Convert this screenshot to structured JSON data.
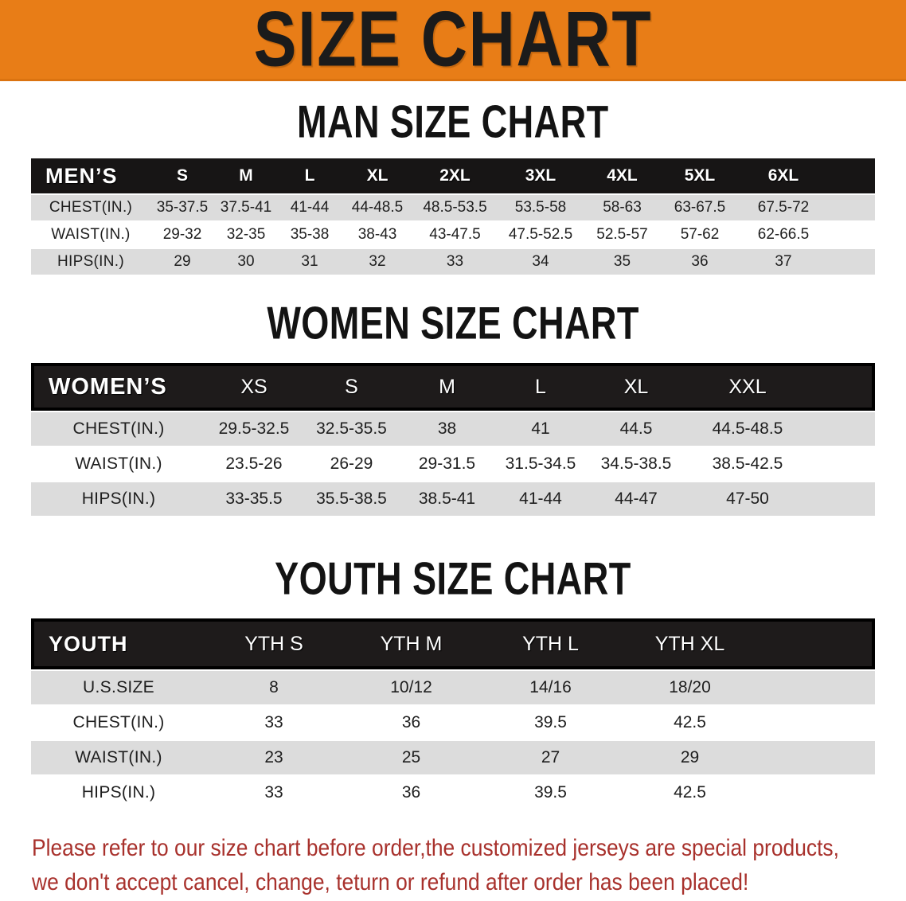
{
  "banner": {
    "title": "SIZE CHART",
    "bg_color": "#e87d17",
    "text_color": "#1b1b1b"
  },
  "sections": {
    "men_heading": "MAN SIZE CHART",
    "women_heading": "WOMEN SIZE CHART",
    "youth_heading": "YOUTH SIZE CHART"
  },
  "tables": {
    "men": {
      "label": "MEN’S",
      "sizes": [
        "S",
        "M",
        "L",
        "XL",
        "2XL",
        "3XL",
        "4XL",
        "5XL",
        "6XL"
      ],
      "rows": [
        {
          "label": "CHEST(IN.)",
          "values": [
            "35-37.5",
            "37.5-41",
            "41-44",
            "44-48.5",
            "48.5-53.5",
            "53.5-58",
            "58-63",
            "63-67.5",
            "67.5-72"
          ]
        },
        {
          "label": "WAIST(IN.)",
          "values": [
            "29-32",
            "32-35",
            "35-38",
            "38-43",
            "43-47.5",
            "47.5-52.5",
            "52.5-57",
            "57-62",
            "62-66.5"
          ]
        },
        {
          "label": "HIPS(IN.)",
          "values": [
            "29",
            "30",
            "31",
            "32",
            "33",
            "34",
            "35",
            "36",
            "37"
          ]
        }
      ]
    },
    "women": {
      "label": "WOMEN’S",
      "sizes": [
        "XS",
        "S",
        "M",
        "L",
        "XL",
        "XXL"
      ],
      "rows": [
        {
          "label": "CHEST(IN.)",
          "values": [
            "29.5-32.5",
            "32.5-35.5",
            "38",
            "41",
            "44.5",
            "44.5-48.5"
          ]
        },
        {
          "label": "WAIST(IN.)",
          "values": [
            "23.5-26",
            "26-29",
            "29-31.5",
            "31.5-34.5",
            "34.5-38.5",
            "38.5-42.5"
          ]
        },
        {
          "label": "HIPS(IN.)",
          "values": [
            "33-35.5",
            "35.5-38.5",
            "38.5-41",
            "41-44",
            "44-47",
            "47-50"
          ]
        }
      ]
    },
    "youth": {
      "label": "YOUTH",
      "sizes": [
        "YTH S",
        "YTH M",
        "YTH L",
        "YTH XL"
      ],
      "rows": [
        {
          "label": "U.S.SIZE",
          "values": [
            "8",
            "10/12",
            "14/16",
            "18/20"
          ]
        },
        {
          "label": "CHEST(IN.)",
          "values": [
            "33",
            "36",
            "39.5",
            "42.5"
          ]
        },
        {
          "label": "WAIST(IN.)",
          "values": [
            "23",
            "25",
            "27",
            "29"
          ]
        },
        {
          "label": "HIPS(IN.)",
          "values": [
            "33",
            "36",
            "39.5",
            "42.5"
          ]
        }
      ]
    }
  },
  "note": {
    "line1": "Please refer to our size chart before order,the customized jerseys are special products,",
    "line2": "we don't accept cancel, change, teturn or refund after order has been placed!",
    "color": "#a8312c"
  },
  "stripe_color": "#dcdcdc",
  "band_color": "#171515"
}
